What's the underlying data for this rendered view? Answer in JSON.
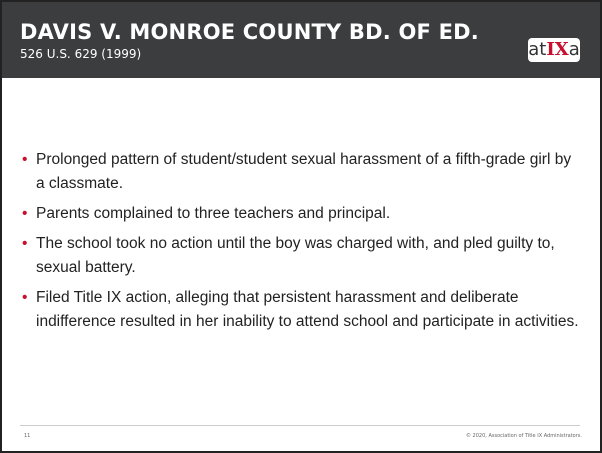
{
  "header": {
    "title": "DAVIS V. MONROE COUNTY BD. OF ED.",
    "subtitle": "526 U.S. 629 (1999)",
    "logo": {
      "parts": [
        "at",
        "IX",
        "a"
      ]
    }
  },
  "bullets": [
    "Prolonged pattern of student/student sexual harassment of a fifth-grade girl by a classmate.",
    "Parents complained to three teachers and principal.",
    "The school took no action until the boy was charged with, and pled guilty to, sexual battery.",
    "Filed Title IX action, alleging that persistent harassment and deliberate indifference resulted in her inability to attend school and participate in activities."
  ],
  "footer": {
    "page": "11",
    "copyright": "© 2020, Association of Title IX Administrators."
  }
}
